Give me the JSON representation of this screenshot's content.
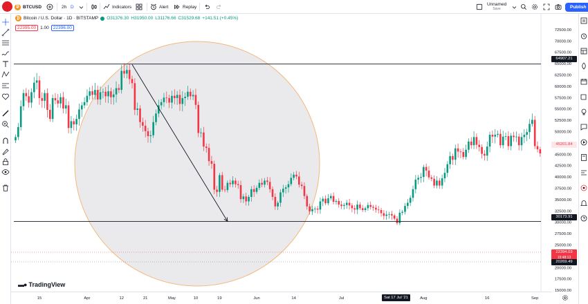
{
  "toolbar": {
    "symbol": "BTCUSD",
    "interval": "2h",
    "interval_type": "D",
    "indicators_label": "Indicators",
    "alert_label": "Alert",
    "replay_label": "Replay",
    "layout_name": "Unnamed",
    "layout_status": "Save",
    "publish_label": "Publish"
  },
  "legend": {
    "title": "Bitcoin / U.S. Dollar · 1D · BITSTAMP",
    "open": "O31376.30",
    "high": "H31950.00",
    "low": "L31176.66",
    "close": "C31529.68",
    "change": "+141.51 (+0.45%)",
    "sell_price": "22395.00",
    "spread": "1.00",
    "buy_price": "22396.00"
  },
  "brand": "TradingView",
  "price_tags": {
    "upper_line": "64907.21",
    "current": "45201.84",
    "lower_line": "30173.91",
    "bottom_red": "22394.03",
    "bottom_red_countdown": "19:48:13",
    "bottom_dark": "20269.49"
  },
  "date_highlight": "Sat 17 Jul '21",
  "colors": {
    "up": "#089981",
    "down": "#f23645",
    "accent": "#2962ff",
    "circle_fill": "#e6e6ea",
    "circle_stroke": "#f5b77a"
  },
  "chart_data": {
    "type": "candlestick",
    "title": "Bitcoin / U.S. Dollar · 1D · BITSTAMP",
    "ylim": [
      15000,
      72500
    ],
    "y_ticks": [
      15000,
      17500,
      20000,
      22500,
      25000,
      27500,
      30000,
      32500,
      35000,
      37500,
      40000,
      42500,
      45000,
      47500,
      50000,
      52500,
      55000,
      57500,
      60000,
      62500,
      65000,
      67500,
      70000,
      72500
    ],
    "y_tick_labels": [
      "15000.00",
      "17500.00",
      "20000.00",
      "22500.00",
      "25000.00",
      "27500.00",
      "30000.00",
      "32500.00",
      "35000.00",
      "37500.00",
      "40000.00",
      "42500.00",
      "45000.00",
      "47500.00",
      "50000.00",
      "52500.00",
      "55000.00",
      "57500.00",
      "60000.00",
      "62500.00",
      "65000.00",
      "67500.00",
      "70000.00",
      "72500.00"
    ],
    "x_ticks": [
      "15",
      "Apr",
      "12",
      "21",
      "May",
      "10",
      "19",
      "Jun",
      "14",
      "Jul",
      "Aug",
      "16",
      "Sep"
    ],
    "horizontal_lines": [
      64907.21,
      30173.91
    ],
    "trend_arrow": {
      "from": [
        "2021-04-14",
        64800
      ],
      "to": [
        "2021-05-19",
        30200
      ]
    },
    "closes": [
      48800,
      51000,
      55600,
      58500,
      57800,
      56400,
      58700,
      60800,
      61300,
      57400,
      56800,
      58500,
      54800,
      52800,
      57400,
      56900,
      56200,
      57600,
      55100,
      55800,
      50800,
      52300,
      51600,
      52800,
      54900,
      55800,
      56500,
      57900,
      58900,
      58100,
      59200,
      57100,
      58700,
      58800,
      57800,
      58900,
      57600,
      58200,
      59600,
      59200,
      63400,
      62800,
      63600,
      61600,
      60700,
      54800,
      55100,
      52100,
      51300,
      50100,
      49000,
      49200,
      52100,
      54000,
      55800,
      56500,
      57500,
      57400,
      56400,
      57900,
      57400,
      58100,
      56100,
      57400,
      57700,
      58800,
      57800,
      58100,
      55900,
      49700,
      49800,
      46700,
      46400,
      43500,
      42900,
      37200,
      36700,
      40400,
      37200,
      37100,
      38700,
      38400,
      39200,
      38400,
      38200,
      35100,
      35700,
      34600,
      35600,
      37300,
      36700,
      37600,
      38700,
      38300,
      39200,
      38900,
      37300,
      35600,
      33500,
      34300,
      36600,
      37400,
      37700,
      38400,
      39800,
      40500,
      40100,
      38300,
      38000,
      35800,
      33500,
      32400,
      32900,
      33000,
      32800,
      34600,
      35200,
      34200,
      35300,
      35800,
      34500,
      34700,
      33900,
      33600,
      33800,
      34300,
      33700,
      33100,
      32800,
      33900,
      33100,
      32700,
      33100,
      33800,
      33400,
      33200,
      32800,
      32700,
      32000,
      31400,
      31700,
      31800,
      31500,
      30800,
      29800,
      32100,
      32300,
      33600,
      34300,
      35400,
      37300,
      39400,
      39800,
      40000,
      42200,
      41400,
      39900,
      39600,
      38100,
      39200,
      38100,
      39700,
      40900,
      42800,
      44600,
      43800,
      46300,
      45600,
      45500,
      44400,
      46000,
      47800,
      47000,
      48800,
      47100,
      46600,
      45100,
      44700,
      46700,
      49300,
      48900,
      49300,
      49500,
      47000,
      48900,
      49000,
      46800,
      49100,
      48800,
      48900,
      47000,
      48800,
      49300,
      49900,
      51700,
      52600,
      46800,
      46100,
      45200
    ]
  }
}
